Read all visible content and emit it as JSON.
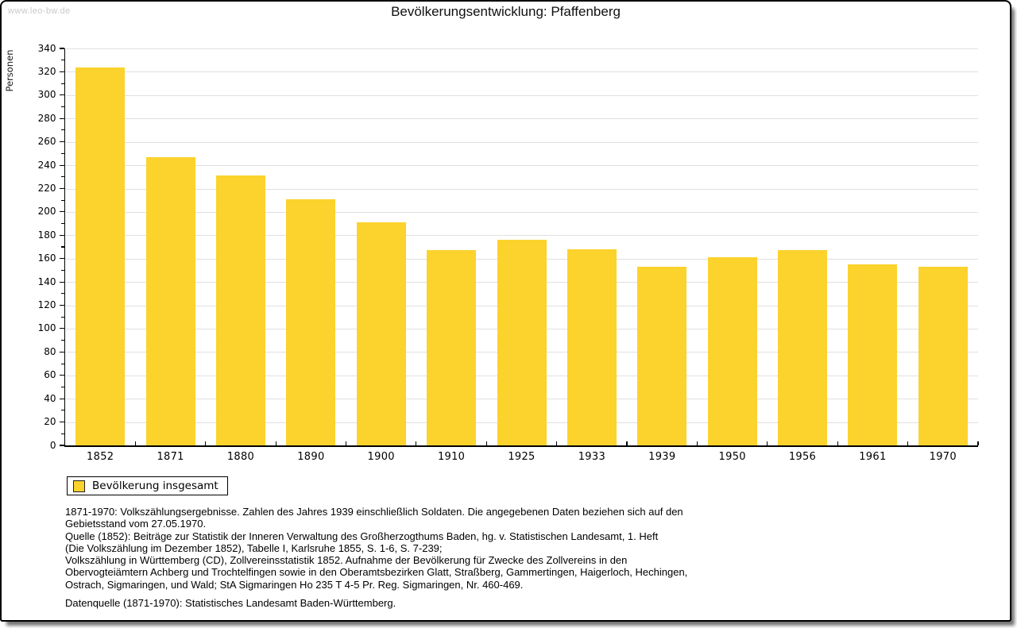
{
  "watermark": "www.leo-bw.de",
  "title": "Bevölkerungsentwicklung: Pfaffenberg",
  "chart_data": {
    "type": "bar",
    "title": "Bevölkerungsentwicklung: Pfaffenberg",
    "xlabel": "",
    "ylabel": "Personen",
    "ylim": [
      0,
      340
    ],
    "ytick_step": 20,
    "yminor_step": 10,
    "grid": true,
    "bar_color": "#FCD22D",
    "legend_position": "bottom-left",
    "categories": [
      "1852",
      "1871",
      "1880",
      "1890",
      "1900",
      "1910",
      "1925",
      "1933",
      "1939",
      "1950",
      "1956",
      "1961",
      "1970"
    ],
    "series": [
      {
        "name": "Bevölkerung insgesamt",
        "values": [
          324,
          247,
          231,
          211,
          191,
          167,
          176,
          168,
          153,
          161,
          167,
          155,
          153
        ]
      }
    ]
  },
  "legend": {
    "label": "Bevölkerung insgesamt",
    "swatch_color": "#FCD22D"
  },
  "footer": {
    "lines": [
      "1871-1970: Volkszählungsergebnisse. Zahlen des Jahres 1939 einschließlich Soldaten. Die angegebenen Daten beziehen sich auf den",
      "Gebietsstand vom 27.05.1970.",
      "Quelle (1852): Beiträge zur Statistik der Inneren Verwaltung des Großherzogthums Baden, hg. v. Statistischen Landesamt, 1. Heft",
      "(Die Volkszählung im Dezember 1852), Tabelle I, Karlsruhe 1855, S. 1-6, S. 7-239;",
      "Volkszählung in Württemberg (CD), Zollvereinsstatistik 1852. Aufnahme der Bevölkerung für Zwecke des Zollvereins in den",
      "Obervogteiämtern Achberg und Trochtelfingen sowie in den Oberamtsbezirken Glatt, Straßberg, Gammertingen, Haigerloch, Hechingen,",
      "Ostrach, Sigmaringen, und Wald; StA Sigmaringen Ho 235 T 4-5 Pr. Reg. Sigmaringen, Nr. 460-469."
    ],
    "source": "Datenquelle (1871-1970): Statistisches Landesamt Baden-Württemberg."
  }
}
